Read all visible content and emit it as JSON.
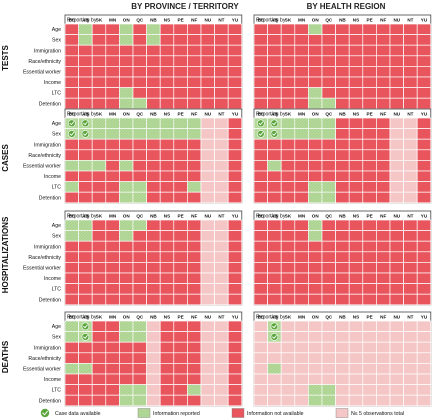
{
  "chart_data": {
    "type": "heatmap",
    "column_titles": [
      "BY PROVINCE / TERRITORY",
      "BY HEALTH REGION"
    ],
    "reporting_label": "Reporting by:",
    "columns": [
      "BC",
      "AB",
      "SK",
      "MN",
      "ON",
      "QC",
      "NB",
      "NS",
      "PE",
      "NF",
      "NU",
      "NT",
      "YU"
    ],
    "rows": [
      "Age",
      "Sex",
      "Immigration",
      "Race/ethnicity",
      "Essential worker",
      "Income",
      "LTC",
      "Detention"
    ],
    "legend": [
      {
        "code": "C",
        "label": "Case data available"
      },
      {
        "code": "R",
        "label": "Information reported"
      },
      {
        "code": "X",
        "label": "Information not available"
      },
      {
        "code": "S",
        "label": "N≤ 5 observations total"
      }
    ],
    "colors": {
      "X": "#e8555c",
      "R": "#b4d99a",
      "C": "#b4d99a",
      "S": "#f5c6c6",
      "check": "#5aa63c",
      "grid": "#ffffff",
      "border": "#444444"
    },
    "panels": [
      {
        "name": "TESTS",
        "province": [
          "XRXXRXRXXXXXX",
          "XRXXRXRXXXXXX",
          "XXXXXXXXXXXXX",
          "XXXXXXXXXXXXX",
          "XXXXXXXXXXXXX",
          "XXXXXXXXXXXXX",
          "XXXXRXXXXXXXX",
          "XXXXRRXXXXXXX"
        ],
        "region": [
          "XXXXRXXXXXXXX",
          "XXXXXXXXXXXXX",
          "XXXXXXXXXXXXX",
          "XXXXXXXXXXXXX",
          "XXXXXXXXXXXXX",
          "XXXXXXXXXXXXX",
          "XXXXRXXXXXXXX",
          "XXXXRRXXXXXXX"
        ]
      },
      {
        "name": "CASES",
        "province": [
          "CCRRRRRRRRSSX",
          "CCRRRRRRRRSSX",
          "XXXXXXXXXXSSX",
          "XXXXXXXXXXSSX",
          "RRRXRXXXXXSSX",
          "XXXXXXXXXXSSX",
          "RXXXRRXXXRSSX",
          "XXXXRRXXXXSSX"
        ],
        "region": [
          "CCRRRRXXXXSSX",
          "CCRRRRXXXXSSX",
          "XXXXXXXXXXSSX",
          "XXXXXXXXXXSSX",
          "XRXXXXXXXXSSX",
          "XXXXXXXXXXSSX",
          "XXXXRRXXXXSSX",
          "XXXXRRXXXXSSX"
        ]
      },
      {
        "name": "HOSPITALIZATIONS",
        "province": [
          "RRXXRRXXXXSSX",
          "RRXXRXXXXXSSX",
          "XXXXXXXXXXSSX",
          "XXXXXXXXXXSSX",
          "XXXXXXXXXXSSX",
          "XXXXXXXXXXSSX",
          "XXXXXXXXXXSSX",
          "XXXXXXXXXXSSX"
        ],
        "region": [
          "XXXXRXXXXXXXX",
          "XXXXRXXXXXXXX",
          "XXXXXXXXXXXXX",
          "XXXXXXXXXXXXX",
          "XXXXXXXXXXXXX",
          "XXXXXXXXXXXXX",
          "XXXXXXXXXXXXX",
          "XXXXXXXXXXXXX"
        ]
      },
      {
        "name": "DEATHS",
        "province": [
          "RCXXRRSXXXSSX",
          "RCXXRRSXXXSSX",
          "XXXXXXSXXXSSX",
          "XXXXXXSXXXSSX",
          "RRXXXXSXXXSSX",
          "XXXXXXSXXXSSX",
          "XXXXRRSXXRSSX",
          "XXXXRRSXXXSSX"
        ],
        "region": [
          "SCSSSSSSSSSSS",
          "SCSSSSSSSSSSS",
          "SSSSSSSSSSSSS",
          "SSSSSSSSSSSSS",
          "SRSSSSSSSSSSS",
          "SSSSSSSSSSSSS",
          "SSSSRRSSSSSSS",
          "SSSSRRSSSSSSS"
        ]
      }
    ]
  }
}
